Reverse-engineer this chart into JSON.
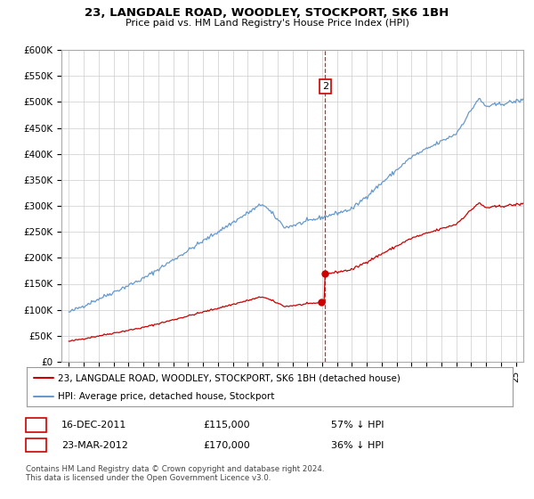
{
  "title": "23, LANGDALE ROAD, WOODLEY, STOCKPORT, SK6 1BH",
  "subtitle": "Price paid vs. HM Land Registry's House Price Index (HPI)",
  "legend_red": "23, LANGDALE ROAD, WOODLEY, STOCKPORT, SK6 1BH (detached house)",
  "legend_blue": "HPI: Average price, detached house, Stockport",
  "transaction1_label": "1",
  "transaction1_date": "16-DEC-2011",
  "transaction1_price": 115000,
  "transaction1_text": "£115,000",
  "transaction1_pct": "57% ↓ HPI",
  "transaction1_year": 2011.958,
  "transaction2_label": "2",
  "transaction2_date": "23-MAR-2012",
  "transaction2_price": 170000,
  "transaction2_text": "£170,000",
  "transaction2_pct": "36% ↓ HPI",
  "transaction2_year": 2012.208,
  "footer": "Contains HM Land Registry data © Crown copyright and database right 2024.\nThis data is licensed under the Open Government Licence v3.0.",
  "red_color": "#cc0000",
  "blue_color": "#6699cc",
  "grid_color": "#cccccc",
  "background_color": "#ffffff",
  "ylim": [
    0,
    600000
  ],
  "yticks": [
    0,
    50000,
    100000,
    150000,
    200000,
    250000,
    300000,
    350000,
    400000,
    450000,
    500000,
    550000,
    600000
  ],
  "xlim_start": 1994.5,
  "xlim_end": 2025.5
}
